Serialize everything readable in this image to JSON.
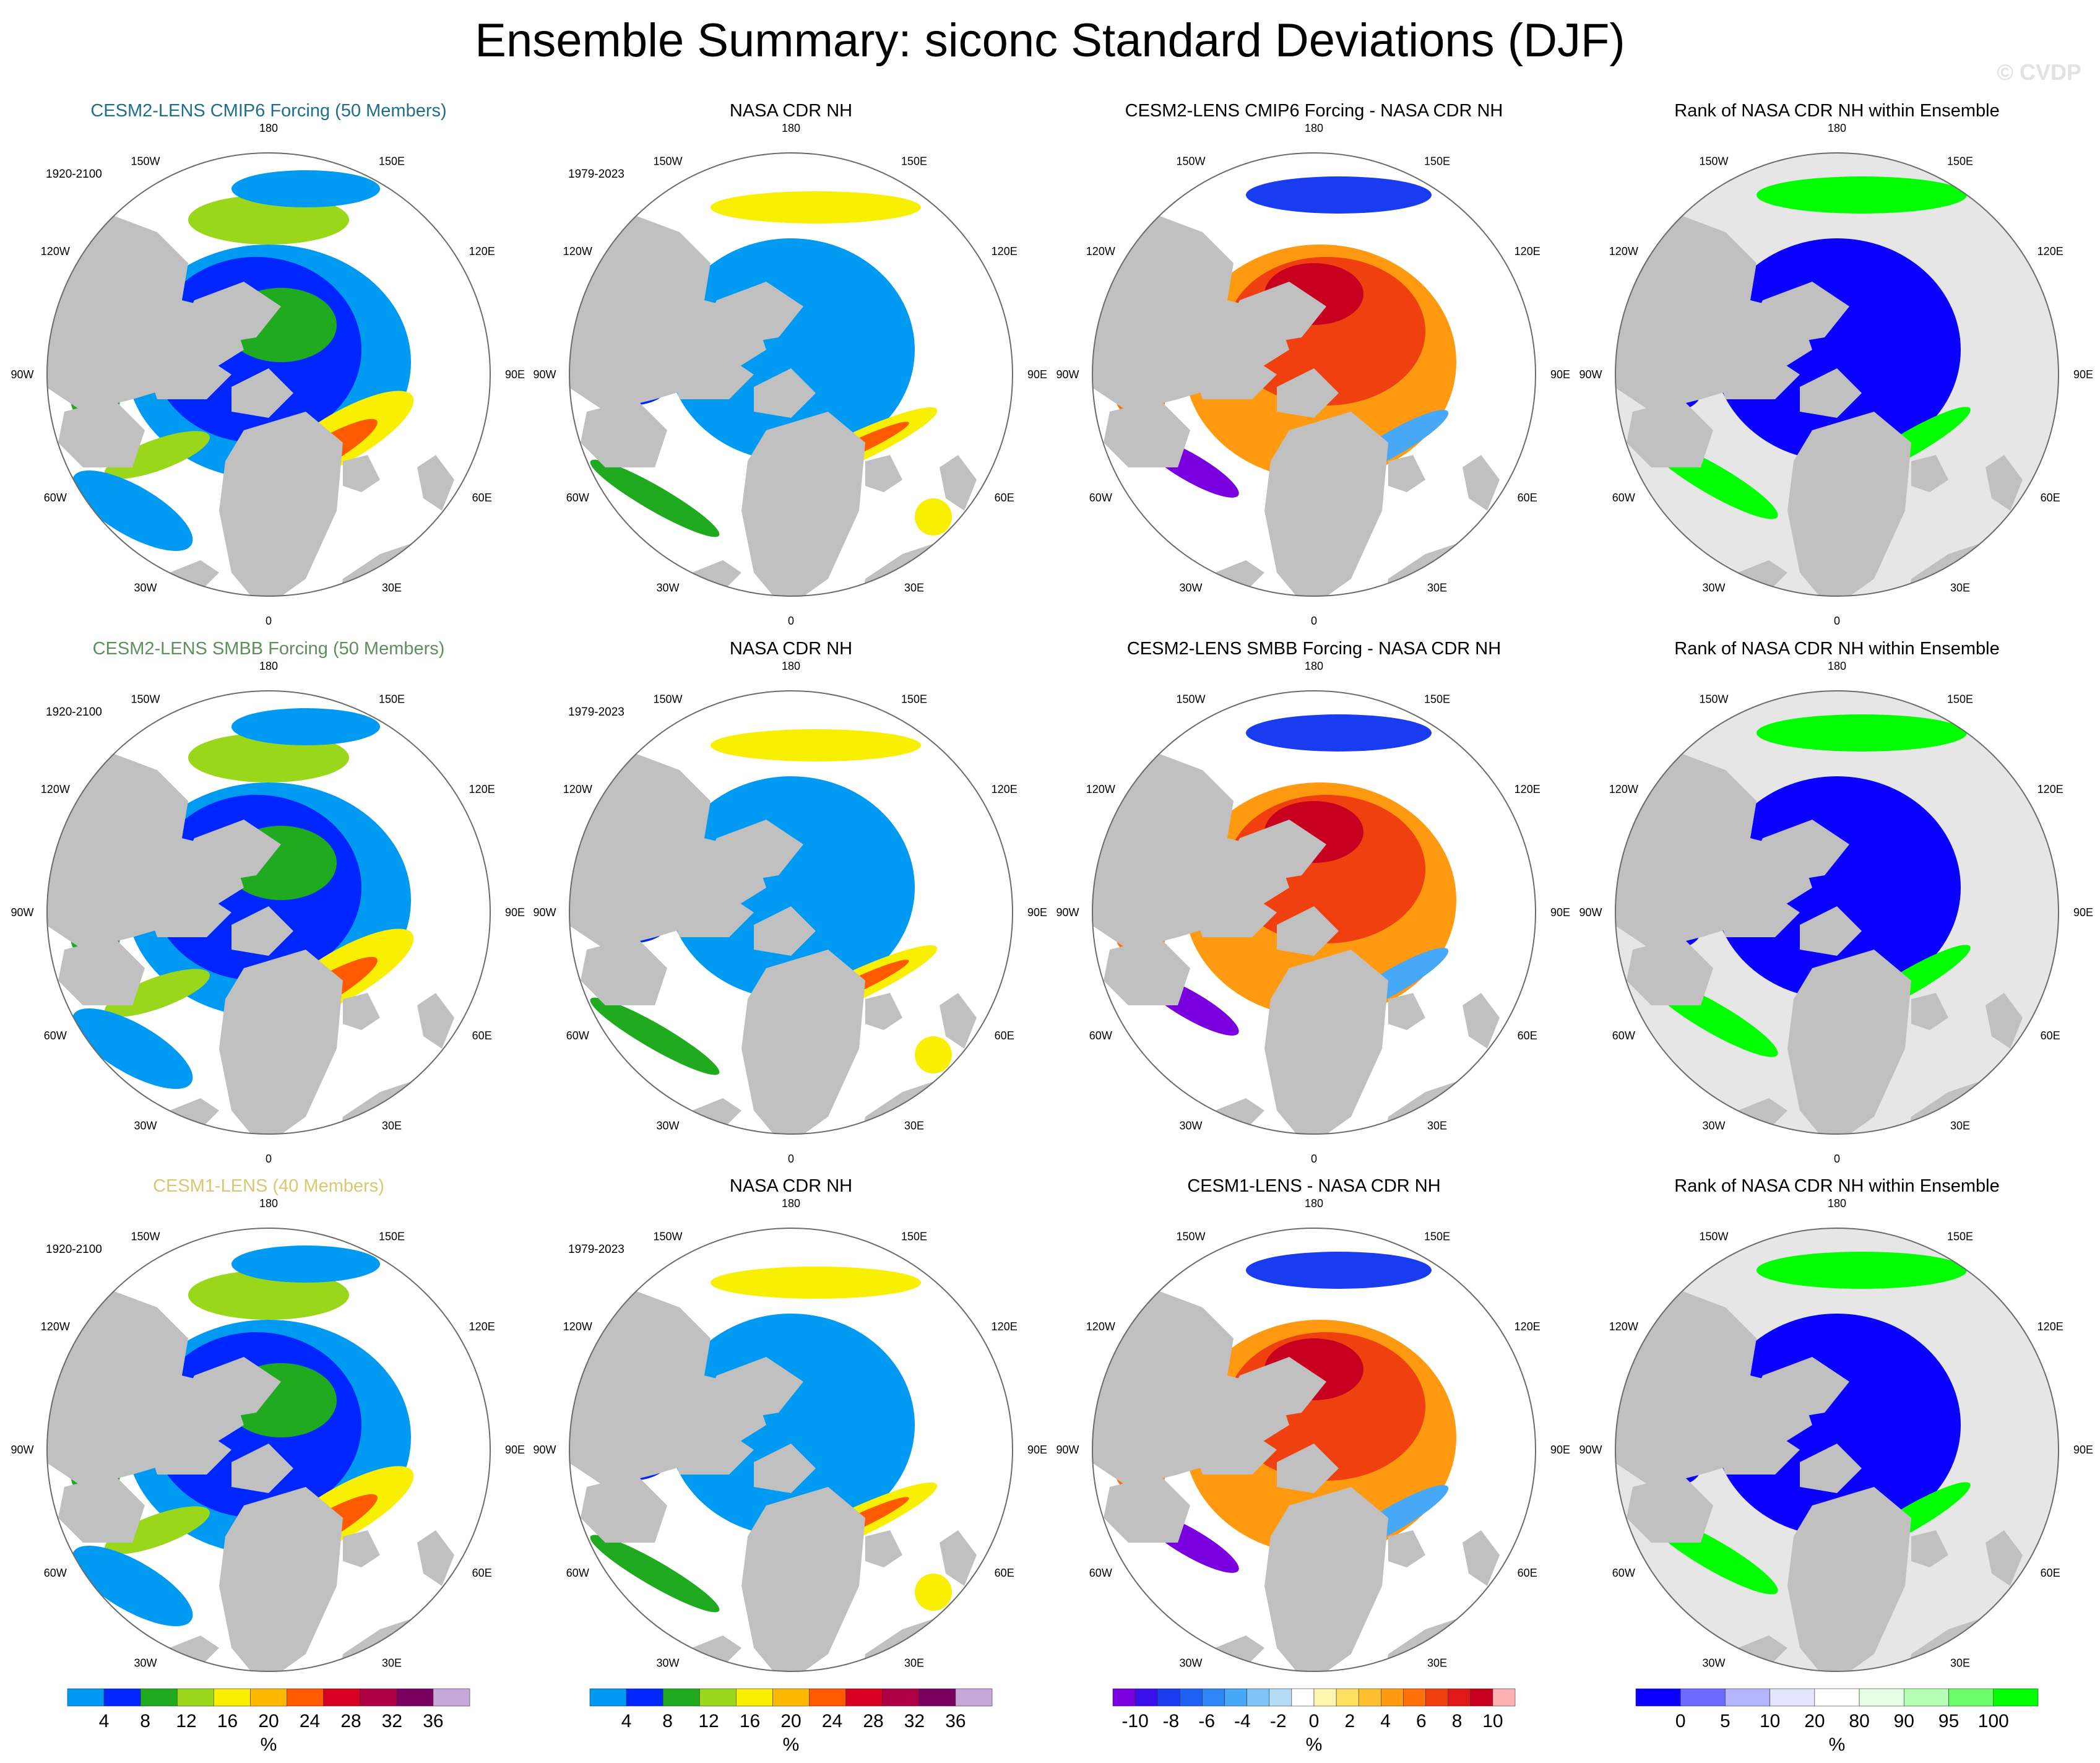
{
  "figure_title": "Ensemble Summary: siconc Standard Deviations (DJF)",
  "watermark": "© CVDP",
  "rows": [
    {
      "titles": [
        "CESM2-LENS CMIP6 Forcing (50 Members)",
        "NASA CDR NH",
        "CESM2-LENS CMIP6 Forcing - NASA CDR NH",
        "Rank of NASA CDR NH within Ensemble"
      ],
      "title_color": "#1f6e8c",
      "model_period": "1920-2100",
      "obs_period": "1979-2023"
    },
    {
      "titles": [
        "CESM2-LENS SMBB Forcing (50 Members)",
        "NASA CDR NH",
        "CESM2-LENS SMBB Forcing - NASA CDR NH",
        "Rank of NASA CDR NH within Ensemble"
      ],
      "title_color": "#5f8f5a",
      "model_period": "1920-2100",
      "obs_period": "1979-2023"
    },
    {
      "titles": [
        "CESM1-LENS (40 Members)",
        "NASA CDR NH",
        "CESM1-LENS - NASA CDR NH",
        "Rank of NASA CDR NH within Ensemble"
      ],
      "title_color": "#d8c870",
      "model_period": "1920-2100",
      "obs_period": "1979-2023"
    }
  ],
  "longitude_labels": [
    "180",
    "150E",
    "120E",
    "90E",
    "60E",
    "30E",
    "0",
    "30W",
    "60W",
    "90W",
    "120W",
    "150W"
  ],
  "colorbars": [
    {
      "unit": "%",
      "labels": [
        "4",
        "8",
        "12",
        "16",
        "20",
        "24",
        "28",
        "32",
        "36"
      ],
      "colors": [
        "#009af2",
        "#0026ff",
        "#1faa1f",
        "#9ad71a",
        "#f8f000",
        "#ffb800",
        "#ff5a00",
        "#d70020",
        "#b00045",
        "#7a0060",
        "#c8a8d8"
      ]
    },
    {
      "unit": "%",
      "labels": [
        "4",
        "8",
        "12",
        "16",
        "20",
        "24",
        "28",
        "32",
        "36"
      ],
      "colors": [
        "#009af2",
        "#0026ff",
        "#1faa1f",
        "#9ad71a",
        "#f8f000",
        "#ffb800",
        "#ff5a00",
        "#d70020",
        "#b00045",
        "#7a0060",
        "#c8a8d8"
      ]
    },
    {
      "unit": "%",
      "labels": [
        "-10",
        "-8",
        "-6",
        "-4",
        "-2",
        "0",
        "2",
        "4",
        "6",
        "8",
        "10"
      ],
      "colors": [
        "#7a00e0",
        "#3a10ea",
        "#1a3cf0",
        "#1c60f4",
        "#2e86f6",
        "#48a8f8",
        "#7ec4f8",
        "#b4dcf8",
        "#ffffff",
        "#fff6b0",
        "#ffe060",
        "#ffc030",
        "#ff9a10",
        "#ff7008",
        "#f04010",
        "#e01818",
        "#c80020",
        "#ffb0b0"
      ]
    },
    {
      "unit": "%",
      "labels": [
        "0",
        "5",
        "10",
        "20",
        "80",
        "90",
        "95",
        "100"
      ],
      "colors": [
        "#0a00ff",
        "#6a6aff",
        "#b4b4ff",
        "#e4e4ff",
        "#ffffff",
        "#e4ffe4",
        "#b4ffb4",
        "#6aff6a",
        "#00ff00"
      ]
    }
  ]
}
